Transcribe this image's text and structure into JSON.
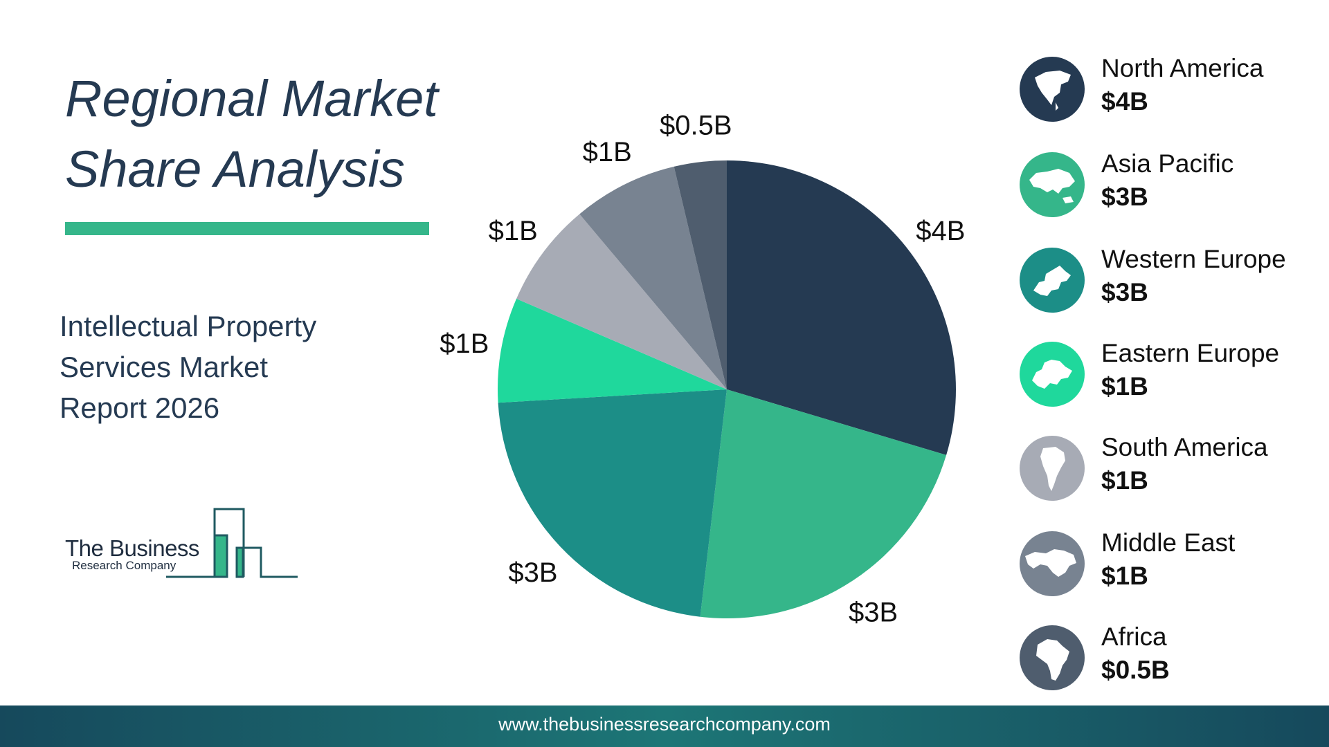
{
  "title": {
    "line1": "Regional Market",
    "line2": "Share Analysis"
  },
  "subtitle": {
    "line1": "Intellectual Property",
    "line2": "Services Market",
    "line3": "Report 2026"
  },
  "logo": {
    "line1": "The Business",
    "line2": "Research Company"
  },
  "footer": {
    "url": "www.thebusinessresearchcompany.com"
  },
  "chart_data": {
    "type": "pie",
    "direction": "clockwise",
    "start": "top",
    "slices": [
      {
        "name": "North America",
        "value": 4,
        "label": "$4B",
        "color": "#253a52",
        "icon": "north-america-map-icon"
      },
      {
        "name": "Asia Pacific",
        "value": 3,
        "label": "$3B",
        "color": "#35b68a",
        "icon": "asia-pacific-map-icon"
      },
      {
        "name": "Western Europe",
        "value": 3,
        "label": "$3B",
        "color": "#1c8e87",
        "icon": "western-europe-map-icon"
      },
      {
        "name": "Eastern Europe",
        "value": 1,
        "label": "$1B",
        "color": "#1fd89c",
        "icon": "eastern-europe-map-icon"
      },
      {
        "name": "South America",
        "value": 1,
        "label": "$1B",
        "color": "#a7abb5",
        "icon": "south-america-map-icon"
      },
      {
        "name": "Middle East",
        "value": 1,
        "label": "$1B",
        "color": "#788391",
        "icon": "middle-east-map-icon"
      },
      {
        "name": "Africa",
        "value": 0.5,
        "label": "$0.5B",
        "color": "#4f5d6e",
        "icon": "africa-map-icon"
      }
    ]
  }
}
